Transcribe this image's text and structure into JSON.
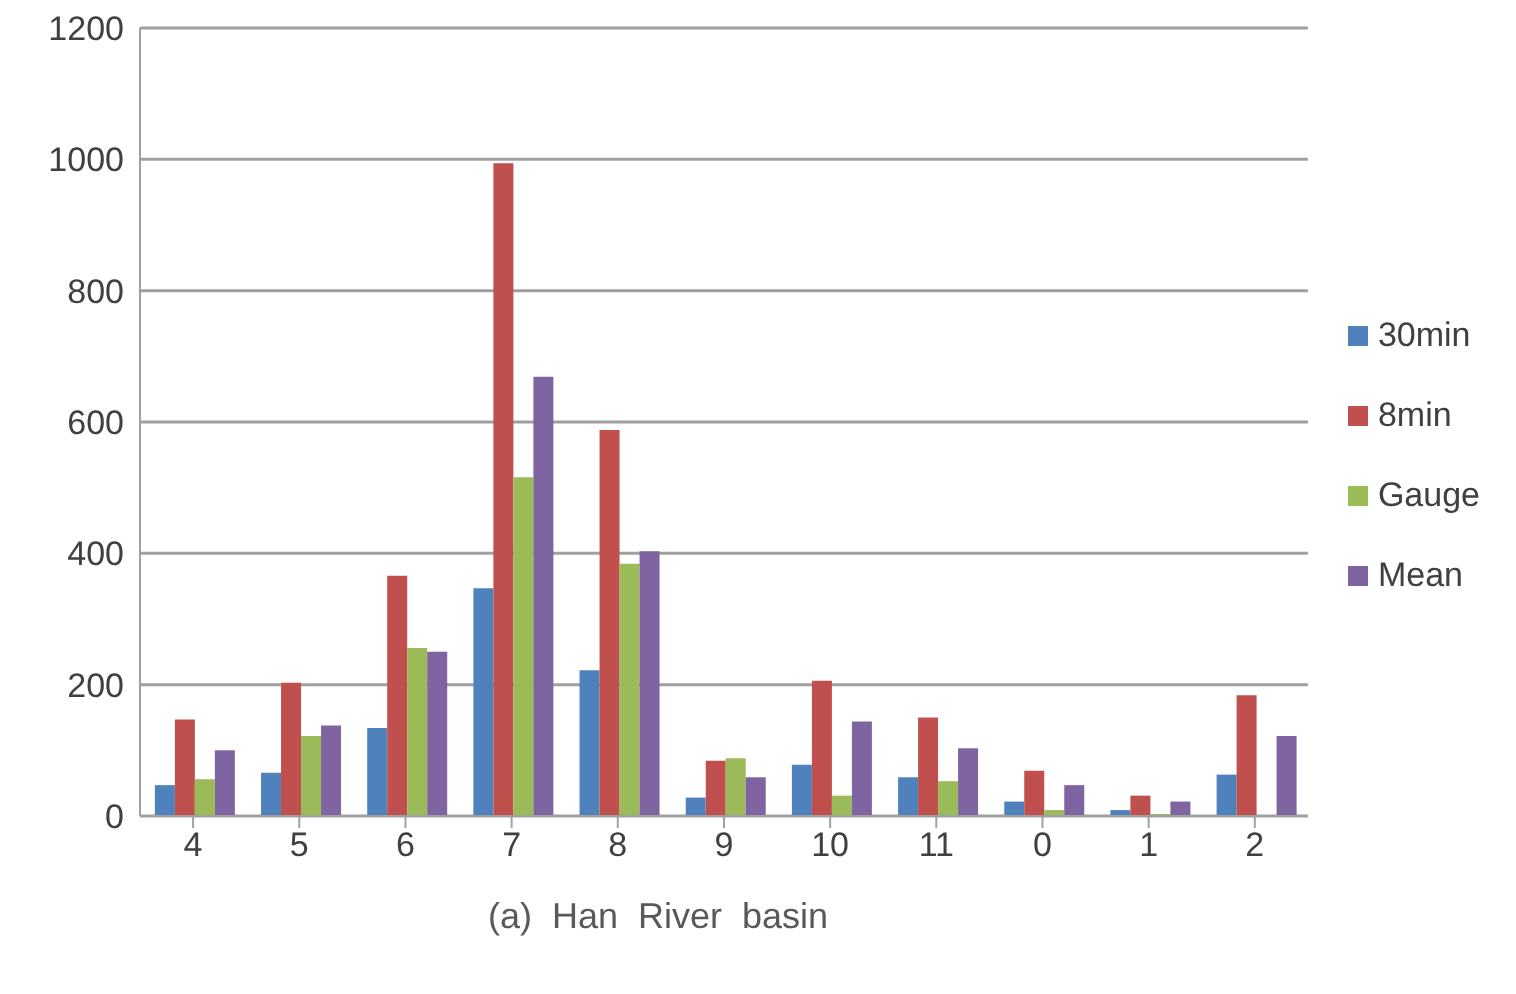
{
  "chart_data": {
    "type": "bar",
    "categories": [
      "4",
      "5",
      "6",
      "7",
      "8",
      "9",
      "10",
      "11",
      "0",
      "1",
      "2"
    ],
    "series": [
      {
        "name": "30min",
        "color": "#4f81bd",
        "values": [
          47,
          66,
          134,
          347,
          222,
          28,
          78,
          59,
          22,
          9,
          63
        ]
      },
      {
        "name": "8min",
        "color": "#c0504d",
        "values": [
          147,
          203,
          366,
          994,
          588,
          84,
          206,
          150,
          69,
          31,
          184
        ]
      },
      {
        "name": "Gauge",
        "color": "#9bbb59",
        "values": [
          56,
          122,
          256,
          516,
          384,
          88,
          31,
          53,
          9,
          3,
          0
        ]
      },
      {
        "name": "Mean",
        "color": "#8064a2",
        "values": [
          100,
          138,
          250,
          669,
          403,
          59,
          144,
          103,
          47,
          22,
          122
        ]
      }
    ],
    "ylim": [
      0,
      1200
    ],
    "yticks": [
      0,
      200,
      400,
      600,
      800,
      1000,
      1200
    ],
    "grid": "y",
    "legend": "right",
    "annotations": [
      "(a)  Han  River  basin"
    ]
  }
}
